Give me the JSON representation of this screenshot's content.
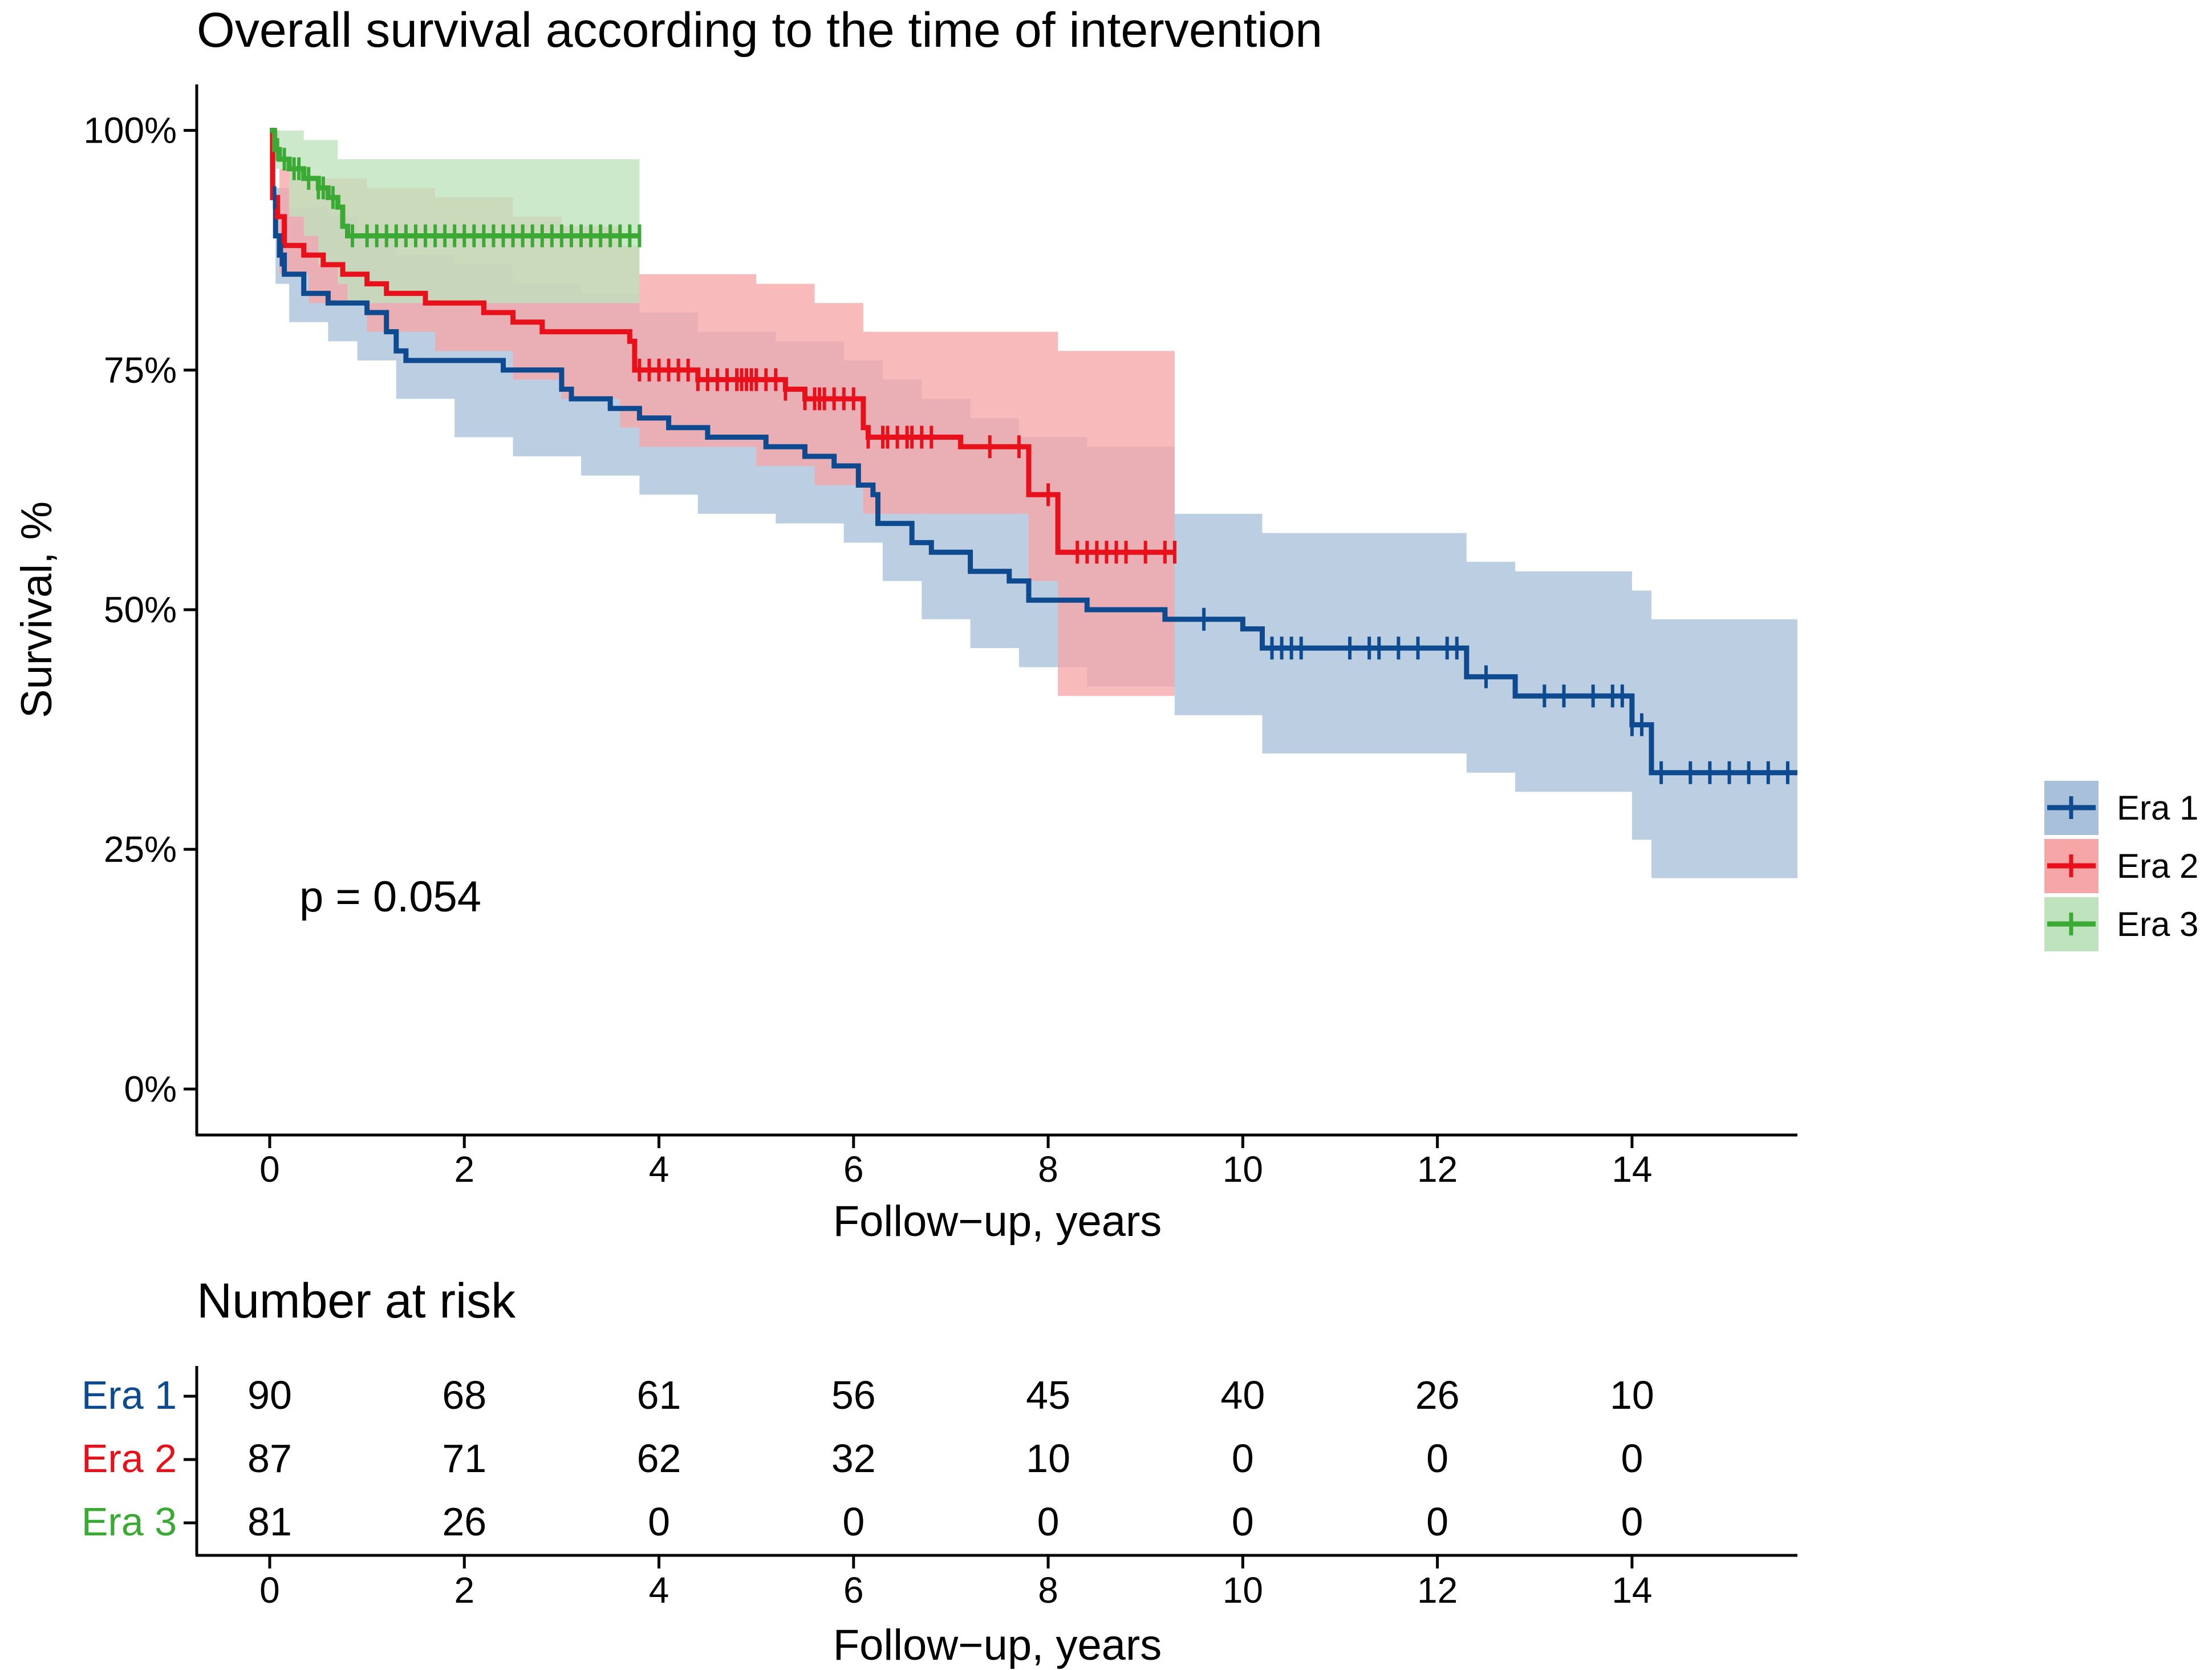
{
  "chart_data": {
    "type": "line",
    "subtype": "kaplan-meier",
    "title": "Overall survival according to the time of intervention",
    "xlabel": "Follow−up, years",
    "ylabel": "Survival, %",
    "xlim": [
      -0.75,
      15.7
    ],
    "ylim": [
      -0.048,
      1.048
    ],
    "x_ticks": [
      "0",
      "2",
      "4",
      "6",
      "8",
      "10",
      "12",
      "14"
    ],
    "y_ticks": [
      "0%",
      "25%",
      "50%",
      "75%",
      "100%"
    ],
    "annotation": "p = 0.054",
    "legend_position": "right",
    "series": [
      {
        "name": "Era 1",
        "label": "Era 1",
        "color": "#0D4A8F",
        "fill": "#A9C0DA",
        "curve": [
          [
            0,
            1.0
          ],
          [
            0.03,
            0.93
          ],
          [
            0.06,
            0.89
          ],
          [
            0.1,
            0.87
          ],
          [
            0.15,
            0.85
          ],
          [
            0.35,
            0.83
          ],
          [
            0.6,
            0.82
          ],
          [
            1.0,
            0.81
          ],
          [
            1.2,
            0.79
          ],
          [
            1.3,
            0.77
          ],
          [
            1.4,
            0.76
          ],
          [
            2.4,
            0.75
          ],
          [
            3.0,
            0.73
          ],
          [
            3.1,
            0.72
          ],
          [
            3.5,
            0.71
          ],
          [
            3.8,
            0.7
          ],
          [
            4.1,
            0.69
          ],
          [
            4.5,
            0.68
          ],
          [
            5.1,
            0.67
          ],
          [
            5.5,
            0.66
          ],
          [
            5.8,
            0.65
          ],
          [
            6.05,
            0.63
          ],
          [
            6.2,
            0.62
          ],
          [
            6.25,
            0.59
          ],
          [
            6.6,
            0.57
          ],
          [
            6.8,
            0.56
          ],
          [
            7.2,
            0.54
          ],
          [
            7.6,
            0.53
          ],
          [
            7.8,
            0.51
          ],
          [
            8.4,
            0.5
          ],
          [
            9.2,
            0.49
          ],
          [
            10.0,
            0.48
          ],
          [
            10.2,
            0.46
          ],
          [
            12.3,
            0.43
          ],
          [
            12.8,
            0.41
          ],
          [
            14.0,
            0.38
          ],
          [
            14.2,
            0.33
          ],
          [
            15.7,
            0.33
          ]
        ],
        "band_upper": [
          [
            0,
            1.0
          ],
          [
            0.06,
            0.94
          ],
          [
            0.2,
            0.92
          ],
          [
            0.6,
            0.91
          ],
          [
            0.9,
            0.89
          ],
          [
            1.3,
            0.87
          ],
          [
            1.9,
            0.86
          ],
          [
            2.5,
            0.84
          ],
          [
            3.2,
            0.83
          ],
          [
            3.8,
            0.81
          ],
          [
            4.4,
            0.79
          ],
          [
            5.2,
            0.78
          ],
          [
            5.9,
            0.76
          ],
          [
            6.3,
            0.74
          ],
          [
            6.7,
            0.72
          ],
          [
            7.2,
            0.7
          ],
          [
            7.7,
            0.68
          ],
          [
            8.4,
            0.67
          ],
          [
            9.3,
            0.6
          ],
          [
            10.2,
            0.58
          ],
          [
            12.3,
            0.55
          ],
          [
            12.8,
            0.54
          ],
          [
            14.0,
            0.52
          ],
          [
            14.2,
            0.49
          ],
          [
            15.7,
            0.49
          ]
        ],
        "band_lower": [
          [
            0,
            0.97
          ],
          [
            0.06,
            0.84
          ],
          [
            0.2,
            0.8
          ],
          [
            0.6,
            0.78
          ],
          [
            0.9,
            0.76
          ],
          [
            1.3,
            0.72
          ],
          [
            1.9,
            0.68
          ],
          [
            2.5,
            0.66
          ],
          [
            3.2,
            0.64
          ],
          [
            3.8,
            0.62
          ],
          [
            4.4,
            0.6
          ],
          [
            5.2,
            0.59
          ],
          [
            5.9,
            0.57
          ],
          [
            6.3,
            0.53
          ],
          [
            6.7,
            0.49
          ],
          [
            7.2,
            0.46
          ],
          [
            7.7,
            0.44
          ],
          [
            8.4,
            0.42
          ],
          [
            9.3,
            0.39
          ],
          [
            10.2,
            0.35
          ],
          [
            12.3,
            0.33
          ],
          [
            12.8,
            0.31
          ],
          [
            14.0,
            0.26
          ],
          [
            14.2,
            0.22
          ],
          [
            15.7,
            0.22
          ]
        ],
        "censors": [
          0.05,
          0.12,
          9.6,
          10.3,
          10.4,
          10.5,
          10.6,
          11.1,
          11.3,
          11.4,
          11.6,
          11.8,
          12.1,
          12.2,
          12.5,
          13.1,
          13.3,
          13.6,
          13.8,
          13.9,
          14.0,
          14.1,
          14.3,
          14.6,
          14.8,
          15.0,
          15.2,
          15.4,
          15.6
        ]
      },
      {
        "name": "Era 2",
        "label": "Era 2",
        "color": "#E8101A",
        "fill": "#F6A6A6",
        "curve": [
          [
            0,
            1.0
          ],
          [
            0.03,
            0.93
          ],
          [
            0.08,
            0.91
          ],
          [
            0.15,
            0.88
          ],
          [
            0.35,
            0.87
          ],
          [
            0.55,
            0.86
          ],
          [
            0.75,
            0.85
          ],
          [
            1.0,
            0.84
          ],
          [
            1.2,
            0.83
          ],
          [
            1.6,
            0.82
          ],
          [
            2.2,
            0.81
          ],
          [
            2.5,
            0.8
          ],
          [
            2.8,
            0.79
          ],
          [
            3.7,
            0.78
          ],
          [
            3.75,
            0.75
          ],
          [
            4.4,
            0.74
          ],
          [
            4.9,
            0.74
          ],
          [
            5.3,
            0.73
          ],
          [
            5.5,
            0.72
          ],
          [
            6.0,
            0.72
          ],
          [
            6.1,
            0.69
          ],
          [
            6.15,
            0.68
          ],
          [
            6.3,
            0.68
          ],
          [
            7.1,
            0.67
          ],
          [
            7.8,
            0.62
          ],
          [
            8.1,
            0.56
          ],
          [
            9.3,
            0.56
          ]
        ],
        "band_upper": [
          [
            0,
            1.0
          ],
          [
            0.1,
            0.96
          ],
          [
            0.4,
            0.95
          ],
          [
            1.0,
            0.94
          ],
          [
            1.7,
            0.93
          ],
          [
            2.5,
            0.91
          ],
          [
            3.0,
            0.9
          ],
          [
            3.6,
            0.88
          ],
          [
            3.8,
            0.85
          ],
          [
            5.0,
            0.84
          ],
          [
            5.6,
            0.82
          ],
          [
            6.1,
            0.79
          ],
          [
            7.8,
            0.79
          ],
          [
            8.1,
            0.77
          ],
          [
            9.3,
            0.77
          ]
        ],
        "band_lower": [
          [
            0,
            0.97
          ],
          [
            0.1,
            0.85
          ],
          [
            0.4,
            0.82
          ],
          [
            1.0,
            0.79
          ],
          [
            1.7,
            0.77
          ],
          [
            2.5,
            0.74
          ],
          [
            3.0,
            0.72
          ],
          [
            3.6,
            0.69
          ],
          [
            3.8,
            0.67
          ],
          [
            5.0,
            0.65
          ],
          [
            5.6,
            0.63
          ],
          [
            6.1,
            0.6
          ],
          [
            7.8,
            0.53
          ],
          [
            8.1,
            0.41
          ],
          [
            9.3,
            0.41
          ]
        ],
        "censors": [
          3.8,
          3.9,
          4.0,
          4.1,
          4.2,
          4.3,
          4.4,
          4.5,
          4.6,
          4.7,
          4.8,
          4.85,
          4.9,
          4.95,
          5.0,
          5.1,
          5.2,
          5.3,
          5.5,
          5.6,
          5.65,
          5.7,
          5.8,
          5.9,
          6.0,
          6.15,
          6.3,
          6.35,
          6.45,
          6.55,
          6.6,
          6.7,
          6.8,
          7.4,
          7.7,
          8.0,
          8.3,
          8.4,
          8.5,
          8.6,
          8.7,
          8.8,
          9.0,
          9.2,
          9.3
        ]
      },
      {
        "name": "Era 3",
        "label": "Era 3",
        "color": "#3BAA35",
        "fill": "#BFE3BC",
        "curve": [
          [
            0,
            1.0
          ],
          [
            0.05,
            0.98
          ],
          [
            0.1,
            0.97
          ],
          [
            0.2,
            0.96
          ],
          [
            0.35,
            0.95
          ],
          [
            0.5,
            0.94
          ],
          [
            0.6,
            0.93
          ],
          [
            0.7,
            0.92
          ],
          [
            0.75,
            0.9
          ],
          [
            0.8,
            0.89
          ],
          [
            3.8,
            0.89
          ]
        ],
        "band_upper": [
          [
            0,
            1.0
          ],
          [
            0.35,
            0.99
          ],
          [
            0.7,
            0.97
          ],
          [
            3.8,
            0.97
          ]
        ],
        "band_lower": [
          [
            0,
            0.96
          ],
          [
            0.2,
            0.91
          ],
          [
            0.35,
            0.89
          ],
          [
            0.5,
            0.86
          ],
          [
            0.7,
            0.84
          ],
          [
            0.8,
            0.82
          ],
          [
            3.8,
            0.82
          ]
        ],
        "censors": [
          0.08,
          0.15,
          0.25,
          0.3,
          0.4,
          0.5,
          0.55,
          0.65,
          0.85,
          1.0,
          1.1,
          1.2,
          1.3,
          1.4,
          1.5,
          1.6,
          1.7,
          1.8,
          1.9,
          2.0,
          2.1,
          2.2,
          2.3,
          2.4,
          2.5,
          2.6,
          2.7,
          2.8,
          2.9,
          3.0,
          3.1,
          3.2,
          3.3,
          3.4,
          3.5,
          3.6,
          3.7,
          3.8
        ]
      }
    ],
    "risk_table": {
      "title": "Number at risk",
      "xlabel": "Follow−up, years",
      "x": [
        0,
        2,
        4,
        6,
        8,
        10,
        12,
        14
      ],
      "x_ticks": [
        "0",
        "2",
        "4",
        "6",
        "8",
        "10",
        "12",
        "14"
      ],
      "rows": [
        {
          "label": "Era 1",
          "color": "#0D4A8F",
          "values": [
            "90",
            "68",
            "61",
            "56",
            "45",
            "40",
            "26",
            "10"
          ]
        },
        {
          "label": "Era 2",
          "color": "#E8101A",
          "values": [
            "87",
            "71",
            "62",
            "32",
            "10",
            "0",
            "0",
            "0"
          ]
        },
        {
          "label": "Era 3",
          "color": "#3BAA35",
          "values": [
            "81",
            "26",
            "0",
            "0",
            "0",
            "0",
            "0",
            "0"
          ]
        }
      ]
    }
  }
}
